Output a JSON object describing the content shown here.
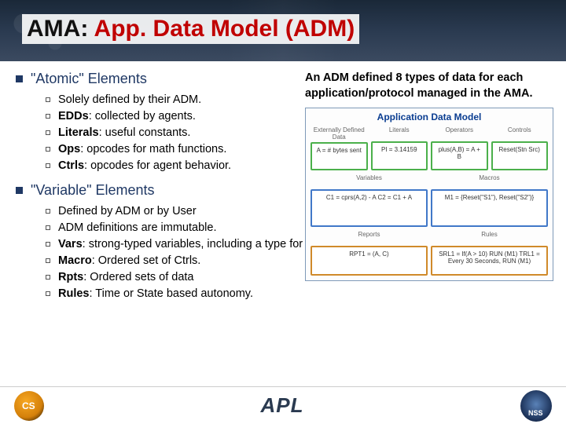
{
  "title_parts": {
    "p1": "AMA: ",
    "p2": "App. Data Model (ADM)"
  },
  "sections": [
    {
      "heading": "\"Atomic\" Elements",
      "items": [
        "Solely defined by their ADM.",
        "<b>EDDs</b>: collected by agents.",
        "<b>Literals</b>: useful constants.",
        "<b>Ops</b>: opcodes for math functions.",
        "<b>Ctrls</b>: opcodes for agent behavior."
      ]
    },
    {
      "heading": "\"Variable\" Elements",
      "items": [
        "Defined by ADM or by User",
        "ADM definitions are immutable.",
        "<b>Vars</b>: strong-typed variables, including a type for \"expression\".",
        "<b>Macro</b>: Ordered set of Ctrls.",
        "<b>Rpts</b>: Ordered sets of data",
        "<b>Rules</b>: Time or State based autonomy."
      ]
    }
  ],
  "caption": "An ADM defined 8 types of data for each application/protocol managed in the AMA.",
  "diagram": {
    "title": "Application Data Model",
    "title_color": "#0a3d91",
    "border_color": "#7f9ab8",
    "rows": [
      {
        "border": "#4bb04b",
        "boxes": [
          {
            "label": "Externally\nDefined Data",
            "body": "A = # bytes sent"
          },
          {
            "label": "Literals",
            "body": "PI = 3.14159"
          },
          {
            "label": "Operators",
            "body": "plus(A,B) = A + B"
          },
          {
            "label": "Controls",
            "body": "Reset(Stn Src)"
          }
        ]
      },
      {
        "border": "#4178c8",
        "boxes": [
          {
            "label": "Variables",
            "body": "C1 = cprs(A,2) - A\nC2 = C1 + A"
          },
          {
            "label": "Macros",
            "body": "M1 = {Reset(\"S1\"), Reset(\"S2\")}"
          }
        ]
      },
      {
        "border": "#d08a2a",
        "boxes": [
          {
            "label": "Reports",
            "body": "RPT1 = (A, C)"
          },
          {
            "label": "Rules",
            "body": "SRL1 = If(A > 10) RUN (M1)\nTRL1 = Every 30 Seconds, RUN (M1)"
          }
        ]
      }
    ]
  },
  "footer": {
    "center": "APL"
  },
  "colors": {
    "title_red": "#c00000",
    "heading": "#1f3864",
    "header_bg": "#2a3a50"
  }
}
